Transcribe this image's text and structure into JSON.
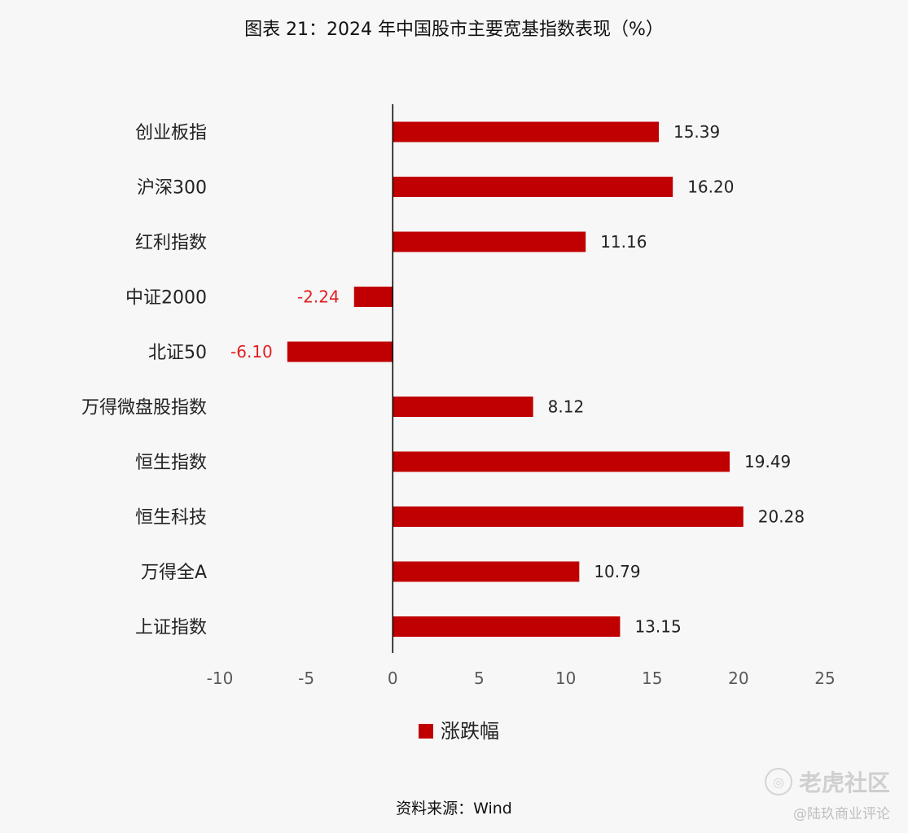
{
  "title": "图表 21：2024 年中国股市主要宽基指数表现（%）",
  "source": "资料来源：Wind",
  "watermark": {
    "brand": "老虎社区",
    "author": "@陆玖商业评论"
  },
  "colors": {
    "bar": "#c00000",
    "negative_label": "#e02020",
    "text": "#222222",
    "axis_tick": "#595959"
  },
  "chart_data": {
    "type": "bar",
    "orientation": "horizontal",
    "categories": [
      "创业板指",
      "沪深300",
      "红利指数",
      "中证2000",
      "北证50",
      "万得微盘股指数",
      "恒生指数",
      "恒生科技",
      "万得全A",
      "上证指数"
    ],
    "series": [
      {
        "name": "涨跌幅",
        "values": [
          15.39,
          16.2,
          11.16,
          -2.24,
          -6.1,
          8.12,
          19.49,
          20.28,
          10.79,
          13.15
        ]
      }
    ],
    "data_labels": [
      "15.39",
      "16.20",
      "11.16",
      "-2.24",
      "-6.10",
      "8.12",
      "19.49",
      "20.28",
      "10.79",
      "13.15"
    ],
    "xlim": [
      -10,
      25
    ],
    "xticks": [
      -10,
      -5,
      0,
      5,
      10,
      15,
      20,
      25
    ],
    "xtick_labels": [
      "-10",
      "-5",
      "0",
      "5",
      "10",
      "15",
      "20",
      "25"
    ],
    "grid": false,
    "legend": "bottom"
  }
}
